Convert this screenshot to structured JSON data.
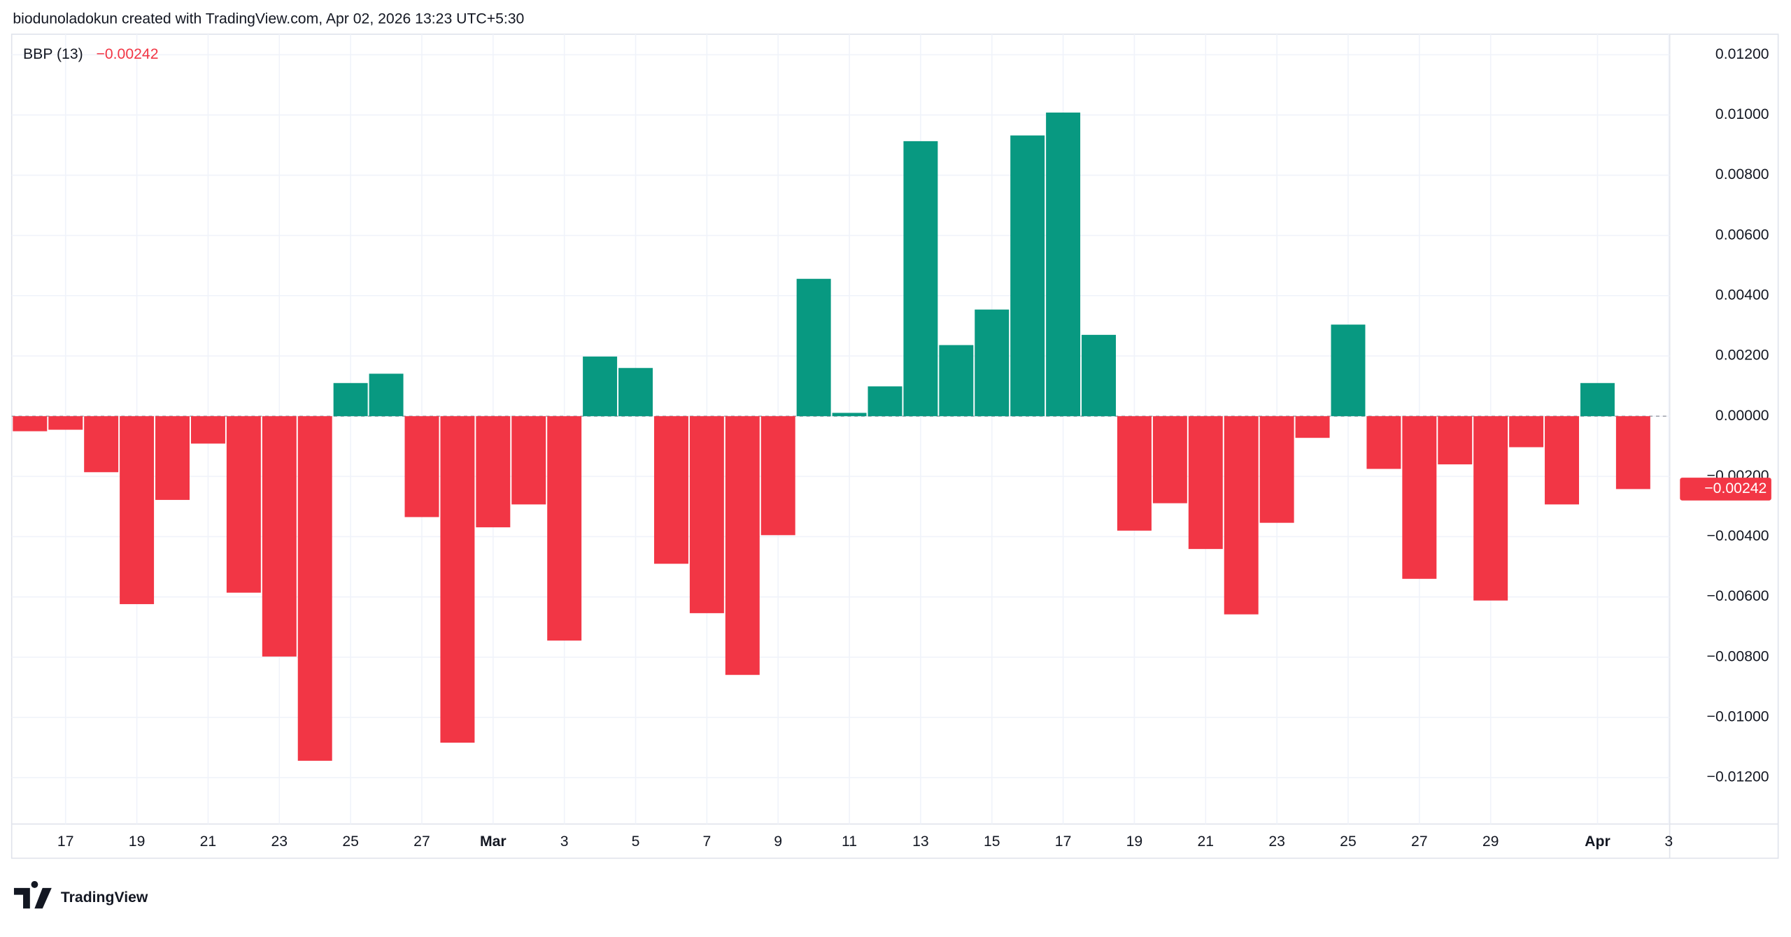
{
  "header": "biodunoladokun created with TradingView.com, Apr 02, 2026 13:23 UTC+5:30",
  "brand": "TradingView",
  "chart_data": {
    "type": "bar",
    "title": "BBP (13)",
    "last_value_label": "−0.00242",
    "up_color": "#089981",
    "down_color": "#f23645",
    "grid": true,
    "categories": [
      null,
      "17",
      null,
      "19",
      null,
      "21",
      null,
      "23",
      null,
      "25",
      null,
      "27",
      null,
      "Mar",
      null,
      "3",
      null,
      "5",
      null,
      "7",
      null,
      "9",
      null,
      "11",
      null,
      "13",
      null,
      "15",
      null,
      "17",
      null,
      "19",
      null,
      "21",
      null,
      "23",
      null,
      "25",
      null,
      "27",
      null,
      "29",
      null,
      null,
      "Apr",
      null,
      "3"
    ],
    "values": [
      -0.0005,
      -0.00045,
      -0.00186,
      -0.00624,
      -0.00278,
      -0.00091,
      -0.00586,
      -0.00798,
      -0.01144,
      0.0011,
      0.00141,
      -0.00335,
      -0.01084,
      -0.00369,
      -0.00293,
      -0.00745,
      0.00198,
      0.0016,
      -0.0049,
      -0.00654,
      -0.00859,
      -0.00395,
      0.00456,
      0.00011,
      0.00099,
      0.00913,
      0.00236,
      0.00354,
      0.00932,
      0.01008,
      0.0027,
      -0.0038,
      -0.00289,
      -0.00441,
      -0.00658,
      -0.00354,
      -0.00072,
      0.00304,
      -0.00175,
      -0.0054,
      -0.0016,
      -0.00612,
      -0.00103,
      -0.00293,
      0.0011,
      -0.00242,
      null
    ],
    "ylim": [
      -0.01354,
      0.01268
    ],
    "yticks": [
      {
        "value": 0.012,
        "label": "0.01200"
      },
      {
        "value": 0.01,
        "label": "0.01000"
      },
      {
        "value": 0.008,
        "label": "0.00800"
      },
      {
        "value": 0.006,
        "label": "0.00600"
      },
      {
        "value": 0.004,
        "label": "0.00400"
      },
      {
        "value": 0.002,
        "label": "0.00200"
      },
      {
        "value": 0,
        "label": "0.00000"
      },
      {
        "value": -0.002,
        "label": "−0.00200"
      },
      {
        "value": -0.004,
        "label": "−0.00400"
      },
      {
        "value": -0.006,
        "label": "−0.00600"
      },
      {
        "value": -0.008,
        "label": "−0.00800"
      },
      {
        "value": -0.01,
        "label": "−0.01000"
      },
      {
        "value": -0.012,
        "label": "−0.01200"
      }
    ]
  }
}
